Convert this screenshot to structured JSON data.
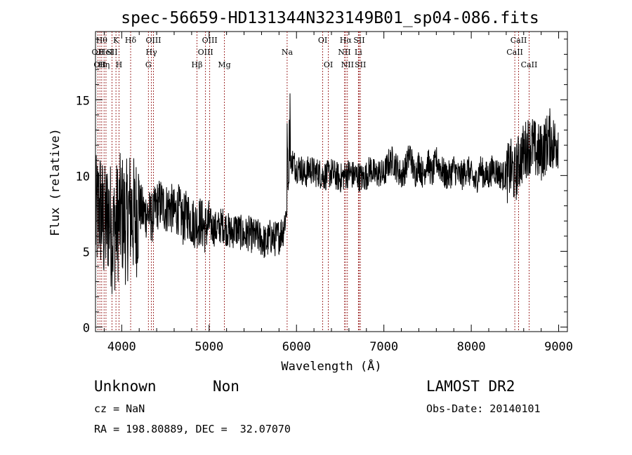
{
  "chart_data": {
    "type": "line",
    "title": "spec-56659-HD131344N323149B01_sp04-086.fits",
    "xlabel": "Wavelength (Å)",
    "ylabel": "Flux (relative)",
    "xlim": [
      3700,
      9100
    ],
    "ylim": [
      -0.3,
      19.5
    ],
    "xticks": [
      4000,
      5000,
      6000,
      7000,
      8000,
      9000
    ],
    "yticks": [
      0,
      5,
      10,
      15
    ],
    "grid": false,
    "legend": "none",
    "line_color": "#000000",
    "marker_color": "#8b0000",
    "series": [
      {
        "x": [
          3700,
          3750,
          3800,
          3850,
          3900,
          3950,
          4000,
          4050,
          4100,
          4150,
          4200,
          4250,
          4300,
          4350,
          4400,
          4450,
          4500,
          4550,
          4600,
          4650,
          4700,
          4750,
          4800,
          4850,
          4900,
          4950,
          5000,
          5050,
          5100,
          5150,
          5200,
          5250,
          5300,
          5350,
          5400,
          5450,
          5500,
          5550,
          5600,
          5650,
          5700,
          5750,
          5800,
          5850,
          5880,
          5900,
          5920,
          5950,
          6000,
          6050,
          6100,
          6150,
          6200,
          6250,
          6300,
          6350,
          6400,
          6450,
          6500,
          6550,
          6600,
          6650,
          6700,
          6750,
          6800,
          6850,
          6900,
          6950,
          7000,
          7050,
          7100,
          7150,
          7200,
          7250,
          7300,
          7350,
          7400,
          7450,
          7500,
          7550,
          7600,
          7650,
          7700,
          7750,
          7800,
          7850,
          7900,
          7950,
          8000,
          8050,
          8100,
          8150,
          8200,
          8250,
          8300,
          8350,
          8400,
          8450,
          8500,
          8550,
          8600,
          8650,
          8700,
          8750,
          8800,
          8850,
          8900,
          8950,
          9000
        ],
        "y": [
          7.0,
          8.0,
          6.5,
          7.5,
          6.0,
          7.0,
          7.5,
          6.8,
          7.8,
          7.0,
          8.0,
          7.5,
          7.5,
          7.2,
          8.0,
          8.2,
          7.8,
          8.0,
          7.5,
          7.8,
          7.0,
          7.5,
          7.0,
          6.8,
          7.0,
          6.5,
          6.8,
          6.5,
          6.5,
          6.8,
          6.5,
          6.2,
          6.5,
          6.3,
          6.0,
          6.2,
          6.0,
          6.0,
          5.8,
          5.5,
          6.0,
          5.8,
          6.0,
          6.5,
          7.5,
          8.5,
          9.8,
          11.0,
          10.5,
          10.5,
          10.0,
          10.5,
          10.2,
          10.2,
          10.0,
          10.0,
          10.2,
          10.0,
          9.8,
          10.0,
          10.2,
          10.0,
          10.0,
          9.8,
          10.0,
          10.5,
          10.0,
          10.2,
          10.0,
          10.8,
          11.0,
          10.5,
          10.0,
          10.5,
          11.5,
          10.0,
          10.8,
          10.0,
          11.0,
          10.0,
          11.0,
          10.5,
          10.0,
          10.0,
          10.5,
          10.0,
          10.0,
          10.5,
          10.0,
          9.5,
          10.5,
          10.0,
          10.0,
          10.5,
          10.2,
          10.0,
          10.0,
          10.5,
          10.0,
          11.0,
          11.5,
          12.0,
          12.0,
          11.5,
          11.5,
          12.0,
          12.5,
          12.0,
          12.5
        ]
      }
    ],
    "lines": [
      {
        "x": 3727,
        "label": "OII",
        "tier": 2
      },
      {
        "x": 3750,
        "label": "OII",
        "tier": 3
      },
      {
        "x": 3771,
        "label": "Hθ",
        "tier": 1
      },
      {
        "x": 3798,
        "label": "Hη",
        "tier": 3
      },
      {
        "x": 3820,
        "label": "HeI",
        "tier": 2
      },
      {
        "x": 3889,
        "label": "SII",
        "tier": 2
      },
      {
        "x": 3934,
        "label": "K",
        "tier": 1
      },
      {
        "x": 3969,
        "label": "H",
        "tier": 3
      },
      {
        "x": 4102,
        "label": "Hδ",
        "tier": 1
      },
      {
        "x": 4305,
        "label": "G",
        "tier": 3
      },
      {
        "x": 4340,
        "label": "Hγ",
        "tier": 2
      },
      {
        "x": 4363,
        "label": "OIII",
        "tier": 1
      },
      {
        "x": 4861,
        "label": "Hβ",
        "tier": 3
      },
      {
        "x": 4959,
        "label": "OIII",
        "tier": 2
      },
      {
        "x": 5007,
        "label": "OIII",
        "tier": 1
      },
      {
        "x": 5175,
        "label": "Mg",
        "tier": 3
      },
      {
        "x": 5893,
        "label": "Na",
        "tier": 2
      },
      {
        "x": 6300,
        "label": "OI",
        "tier": 1
      },
      {
        "x": 6364,
        "label": "OI",
        "tier": 3
      },
      {
        "x": 6548,
        "label": "NII",
        "tier": 2
      },
      {
        "x": 6563,
        "label": "Hα",
        "tier": 1
      },
      {
        "x": 6583,
        "label": "NII",
        "tier": 3
      },
      {
        "x": 6708,
        "label": "Li",
        "tier": 2
      },
      {
        "x": 6717,
        "label": "SII",
        "tier": 1
      },
      {
        "x": 6731,
        "label": "SII",
        "tier": 3
      },
      {
        "x": 8498,
        "label": "CaII",
        "tier": 2
      },
      {
        "x": 8542,
        "label": "CaII",
        "tier": 1
      },
      {
        "x": 8662,
        "label": "CaII",
        "tier": 3
      }
    ]
  },
  "info": {
    "object_class": "Unknown",
    "object_subclass": "Non",
    "survey": "LAMOST DR2",
    "redshift": "cz = NaN",
    "obs_date": "Obs-Date: 20140101",
    "coords": "RA = 198.80889, DEC =  32.07070"
  }
}
